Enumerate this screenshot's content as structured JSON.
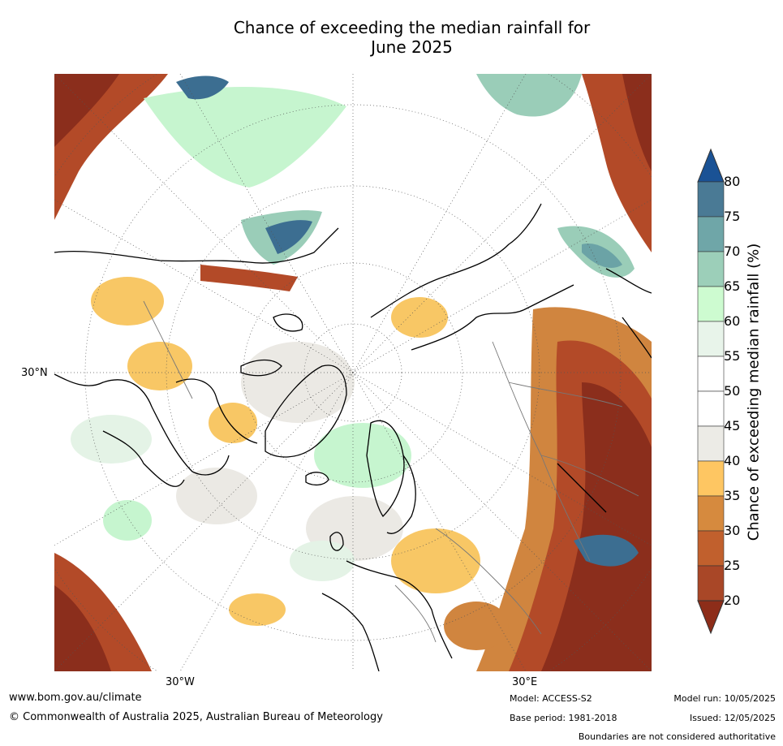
{
  "title_line1": "Chance of exceeding the median rainfall for",
  "title_line2": "June 2025",
  "map": {
    "lat_label": "30°N",
    "lon_labels": [
      "30°W",
      "30°E"
    ],
    "colors": {
      "ocean_white": "#ffffff",
      "dry_dark": "#8b2e1c",
      "dry_mid": "#b34a28",
      "dry_light": "#d0853f",
      "dry_faint": "#f8c765",
      "neutral": "#ebe9e4",
      "wet_faint": "#e4f3e6",
      "wet_light": "#c6f5cf",
      "wet_mid": "#9acdb8",
      "wet_dark": "#6ba3a6",
      "wet_deep": "#3c6e91"
    }
  },
  "colorbar": {
    "title": "Chance of exceeding median rainfall (%)",
    "ticks": [
      "80",
      "75",
      "70",
      "65",
      "60",
      "55",
      "50",
      "45",
      "40",
      "35",
      "30",
      "25",
      "20"
    ],
    "colors": [
      "#1a5295",
      "#4a7a95",
      "#6fa6a8",
      "#9ccfb9",
      "#cdfbd0",
      "#e8f4ea",
      "#ffffff",
      "#ffffff",
      "#ecebe6",
      "#fec662",
      "#d68a3e",
      "#c1602d",
      "#a94727",
      "#8d2d19"
    ]
  },
  "footer": {
    "url": "www.bom.gov.au/climate",
    "copyright": "© Commonwealth of Australia 2025, Australian Bureau of Meteorology",
    "model": "Model: ACCESS-S2",
    "base_period": "Base period: 1981-2018",
    "model_run": "Model run: 10/05/2025",
    "issued": "Issued: 12/05/2025",
    "disclaimer": "Boundaries are not considered authoritative"
  }
}
